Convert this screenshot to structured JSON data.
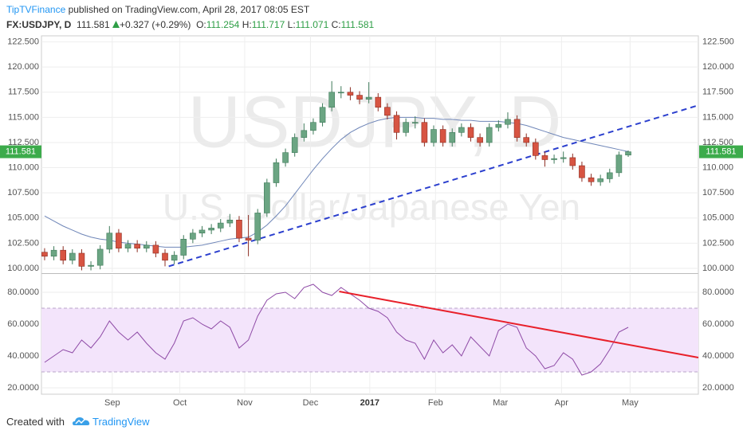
{
  "header": {
    "author": "TipTVFinance",
    "published": " published on TradingView.com, April 28, 2017 08:05 EST",
    "symbol": "FX:USDJPY, D",
    "change": "+0.327 (+0.29%)",
    "ohlc_labels": [
      "O:",
      "H:",
      "L:",
      "C:"
    ]
  },
  "watermark": {
    "symbol": "USDJPY, D",
    "description": "U.S. Dollar/Japanese Yen"
  },
  "footer": {
    "created_with": "Created with",
    "brand": "TradingView"
  },
  "chart_data": [
    {
      "type": "candlestick",
      "up_color": "#6ba583",
      "down_color": "#d75442",
      "price_tag_color": "#3cab4b",
      "open": [
        101.6,
        101.2,
        101.8,
        100.8,
        101.5,
        100.2,
        100.3,
        101.9,
        103.5,
        102.0,
        102.4,
        102.0,
        102.3,
        101.5,
        100.8,
        101.3,
        102.9,
        103.5,
        103.8,
        104.0,
        104.5,
        104.8,
        103.0,
        102.8,
        105.5,
        108.5,
        110.5,
        111.5,
        113.0,
        113.7,
        114.5,
        116.0,
        117.5,
        117.5,
        117.2,
        116.8,
        117.0,
        116.0,
        115.2,
        113.5,
        114.5,
        114.5,
        112.5,
        113.8,
        112.5,
        113.5,
        114.0,
        113.0,
        112.5,
        114.0,
        114.3,
        114.8,
        113.0,
        112.5,
        111.2,
        110.8,
        110.9,
        111.0,
        110.2,
        109.0,
        108.6,
        108.9,
        109.5,
        111.254
      ],
      "high": [
        102.0,
        102.2,
        102.2,
        101.9,
        101.9,
        100.7,
        102.3,
        104.2,
        103.9,
        102.8,
        102.8,
        102.7,
        102.7,
        101.9,
        101.7,
        103.3,
        103.9,
        104.2,
        104.4,
        104.9,
        105.4,
        105.2,
        105.3,
        105.9,
        108.9,
        110.9,
        111.9,
        113.4,
        114.4,
        114.9,
        116.4,
        118.6,
        118.1,
        118.0,
        117.6,
        118.5,
        117.4,
        116.4,
        115.6,
        114.9,
        115.1,
        114.9,
        114.2,
        114.2,
        113.9,
        114.4,
        114.4,
        113.4,
        114.4,
        114.7,
        115.5,
        115.2,
        113.4,
        112.9,
        111.6,
        111.3,
        111.6,
        111.4,
        110.6,
        109.4,
        109.3,
        109.9,
        111.6,
        111.717
      ],
      "low": [
        100.8,
        100.8,
        100.4,
        100.4,
        99.8,
        99.8,
        99.9,
        101.5,
        101.6,
        101.6,
        101.6,
        101.6,
        101.1,
        100.2,
        100.4,
        100.9,
        102.5,
        103.1,
        103.4,
        103.6,
        104.1,
        102.6,
        101.2,
        102.4,
        105.1,
        108.1,
        110.1,
        111.1,
        112.6,
        113.3,
        114.1,
        115.6,
        116.9,
        116.7,
        116.3,
        116.4,
        115.6,
        114.8,
        112.8,
        113.1,
        113.9,
        112.1,
        112.1,
        112.1,
        112.1,
        113.1,
        112.6,
        112.1,
        112.1,
        113.6,
        113.9,
        112.6,
        112.1,
        110.8,
        110.1,
        110.4,
        110.5,
        109.8,
        108.6,
        108.2,
        108.2,
        108.5,
        109.1,
        111.071
      ],
      "close": [
        101.2,
        101.8,
        100.8,
        101.5,
        100.2,
        100.3,
        101.9,
        103.5,
        102.0,
        102.4,
        102.0,
        102.3,
        101.5,
        100.8,
        101.3,
        102.9,
        103.5,
        103.8,
        104.0,
        104.5,
        104.8,
        103.0,
        102.8,
        105.5,
        108.5,
        110.5,
        111.5,
        113.0,
        113.7,
        114.5,
        116.0,
        117.5,
        117.5,
        117.2,
        116.8,
        117.0,
        116.0,
        115.2,
        113.5,
        114.5,
        114.5,
        112.5,
        113.8,
        112.5,
        113.5,
        114.0,
        113.0,
        112.5,
        114.0,
        114.3,
        114.8,
        113.0,
        112.5,
        111.2,
        110.8,
        110.9,
        111.0,
        110.2,
        109.0,
        108.6,
        108.9,
        109.5,
        111.254,
        111.581
      ],
      "ma": {
        "color": "#6f86b8",
        "values": [
          105.2,
          104.7,
          104.2,
          103.8,
          103.4,
          103.1,
          102.9,
          102.8,
          102.6,
          102.5,
          102.4,
          102.3,
          102.2,
          102.1,
          102.1,
          102.1,
          102.2,
          102.3,
          102.5,
          102.7,
          102.9,
          103.0,
          103.1,
          103.6,
          104.3,
          105.2,
          106.2,
          107.4,
          108.6,
          109.8,
          110.9,
          111.9,
          112.8,
          113.5,
          114.0,
          114.4,
          114.7,
          114.9,
          115.0,
          115.0,
          115.0,
          114.9,
          114.9,
          114.8,
          114.8,
          114.7,
          114.7,
          114.6,
          114.6,
          114.6,
          114.5,
          114.4,
          114.2,
          113.9,
          113.6,
          113.3,
          113.0,
          112.8,
          112.6,
          112.4,
          112.2,
          112.0,
          111.8,
          111.6
        ]
      },
      "trendline": {
        "color": "#2b3fce",
        "x": [
          13.4,
          70.57
        ],
        "y": [
          100.2,
          116.2
        ]
      },
      "xlim": [
        -0.34,
        70.57
      ],
      "ylim": [
        99.6,
        123.1
      ],
      "yticks": [
        {
          "value": 100,
          "label": "100.000"
        },
        {
          "value": 102.5,
          "label": "102.500"
        },
        {
          "value": 105,
          "label": "105.000"
        },
        {
          "value": 107.5,
          "label": "107.500"
        },
        {
          "value": 110,
          "label": "110.000"
        },
        {
          "value": 112.5,
          "label": "112.500"
        },
        {
          "value": 115,
          "label": "115.000"
        },
        {
          "value": 117.5,
          "label": "117.500"
        },
        {
          "value": 120,
          "label": "120.000"
        },
        {
          "value": 122.5,
          "label": "122.500"
        }
      ],
      "grid": true
    },
    {
      "type": "line",
      "color": "#8e4aa6",
      "values": [
        36,
        40,
        44,
        42,
        50,
        45,
        52,
        62,
        55,
        50,
        55,
        48,
        42,
        38,
        48,
        62,
        64,
        60,
        57,
        62,
        58,
        45,
        50,
        65,
        75,
        79,
        80,
        76,
        83,
        85,
        80,
        78,
        83,
        79,
        75,
        70,
        68,
        64,
        55,
        50,
        48,
        38,
        50,
        42,
        47,
        40,
        52,
        46,
        40,
        56,
        60,
        58,
        45,
        40,
        32,
        34,
        42,
        38,
        28,
        30,
        35,
        44,
        55,
        58
      ],
      "band": [
        30,
        70
      ],
      "band_color": "#f3e4fb",
      "band_line_color": "#b9a6c8",
      "trendline": {
        "color": "#e8202a",
        "x": [
          31.8,
          70.57
        ],
        "y": [
          80.5,
          39
        ]
      },
      "xlim": [
        -0.34,
        70.57
      ],
      "ylim": [
        16,
        91
      ],
      "yticks": [
        {
          "value": 20,
          "label": "20.0000"
        },
        {
          "value": 40,
          "label": "40.0000"
        },
        {
          "value": 60,
          "label": "60.0000"
        },
        {
          "value": 80,
          "label": "80.0000"
        }
      ],
      "xticks": [
        {
          "value": 7.3,
          "label": "Sep"
        },
        {
          "value": 14.6,
          "label": "Oct"
        },
        {
          "value": 21.6,
          "label": "Nov"
        },
        {
          "value": 28.7,
          "label": "Dec"
        },
        35.1,
        {
          "value": 42.2,
          "label": "Feb"
        },
        {
          "value": 49.2,
          "label": "Mar"
        },
        {
          "value": 55.8,
          "label": "Apr"
        },
        {
          "value": 63.2,
          "label": "May"
        }
      ],
      "xtick_year_label": "2017",
      "grid": true
    }
  ]
}
